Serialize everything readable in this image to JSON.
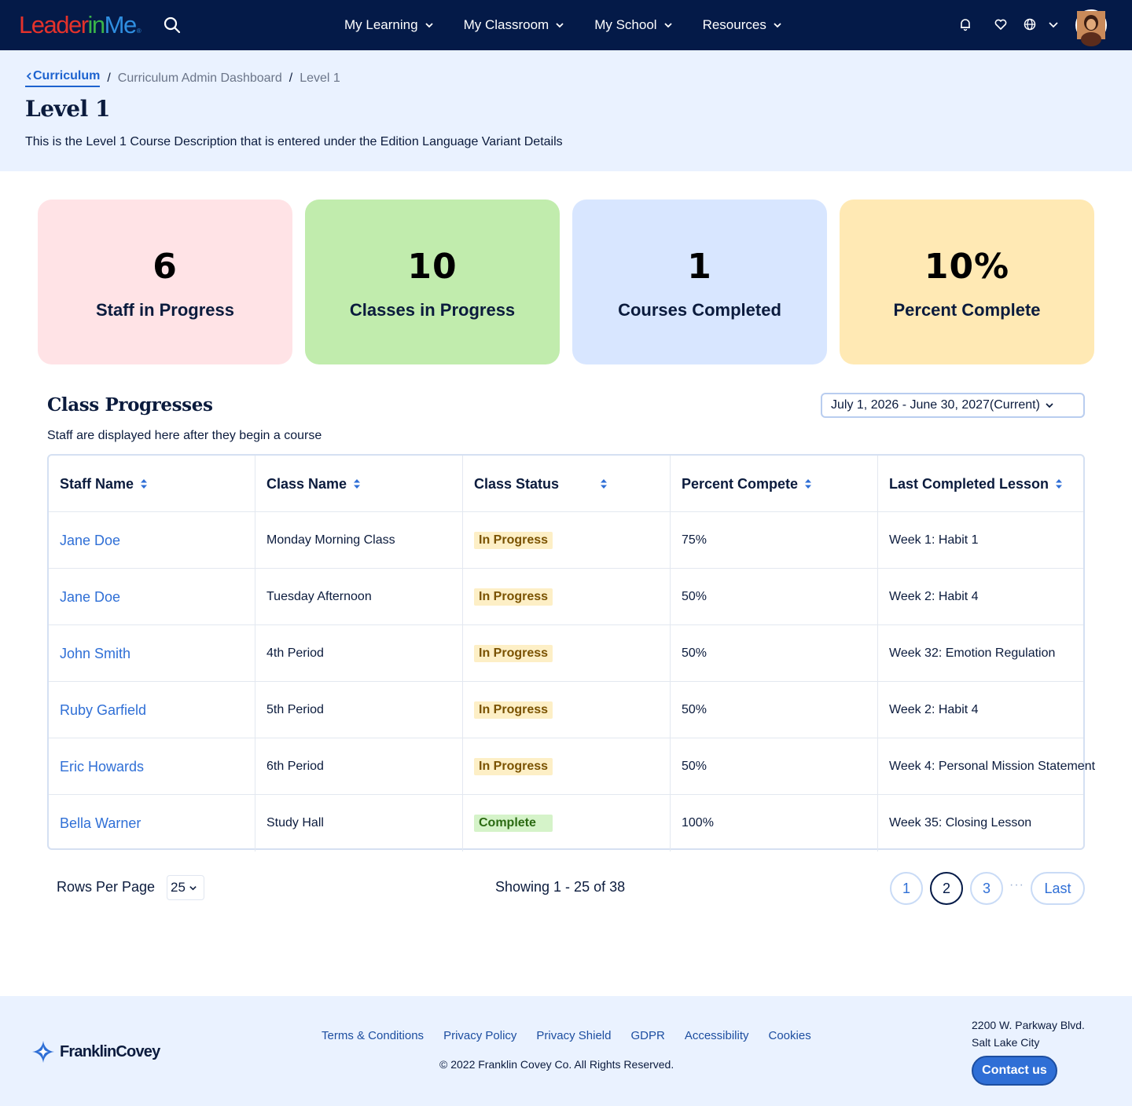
{
  "header": {
    "logo": {
      "part1": "Leader",
      "part2": "in",
      "part3": "Me",
      "mark": "®"
    },
    "nav": [
      {
        "label": "My Learning"
      },
      {
        "label": "My Classroom"
      },
      {
        "label": "My School"
      },
      {
        "label": "Resources"
      }
    ],
    "icons": [
      "search-icon",
      "bell-icon",
      "heart-icon",
      "globe-icon",
      "chevron-down-icon"
    ]
  },
  "breadcrumb": {
    "back_label": "Curriculum",
    "items": [
      "Curriculum Admin Dashboard",
      "Level 1"
    ]
  },
  "page": {
    "title": "Level 1",
    "description": "This is the Level 1 Course Description that is entered under the Edition Language Variant Details"
  },
  "stats": [
    {
      "value": "6",
      "label": "Staff in Progress",
      "color": "#ffe3e6"
    },
    {
      "value": "10",
      "label": "Classes in Progress",
      "color": "#c1ecad"
    },
    {
      "value": "1",
      "label": "Courses Completed",
      "color": "#d8e6ff"
    },
    {
      "value": "10%",
      "label": "Percent Complete",
      "color": "#ffe9b4"
    }
  ],
  "section": {
    "title": "Class Progresses",
    "subtitle": "Staff are displayed here after they begin a course",
    "date_range": "July 1, 2026 - June 30, 2027(Current)"
  },
  "table": {
    "columns": [
      "Staff Name",
      "Class Name",
      "Class Status",
      "Percent Compete",
      "Last Completed Lesson"
    ],
    "rows": [
      {
        "staff": "Jane Doe",
        "class": "Monday Morning Class",
        "status": "In Progress",
        "percent": "75%",
        "lesson": "Week 1: Habit 1"
      },
      {
        "staff": "Jane Doe",
        "class": "Tuesday Afternoon",
        "status": "In Progress",
        "percent": "50%",
        "lesson": "Week 2: Habit 4"
      },
      {
        "staff": "John Smith",
        "class": "4th Period",
        "status": "In Progress",
        "percent": "50%",
        "lesson": "Week 32: Emotion Regulation"
      },
      {
        "staff": "Ruby Garfield",
        "class": "5th Period",
        "status": "In Progress",
        "percent": "50%",
        "lesson": "Week 2: Habit 4"
      },
      {
        "staff": "Eric Howards",
        "class": "6th Period",
        "status": "In Progress",
        "percent": "50%",
        "lesson": "Week 4: Personal Mission Statement"
      },
      {
        "staff": "Bella Warner",
        "class": "Study Hall",
        "status": "Complete",
        "percent": "100%",
        "lesson": "Week 35: Closing Lesson"
      }
    ]
  },
  "pagination": {
    "rows_label": "Rows Per Page",
    "rows_value": "25",
    "showing": "Showing 1 - 25 of 38",
    "pages": [
      "1",
      "2",
      "3"
    ],
    "active_page": "2",
    "ellipsis": "···",
    "last_label": "Last"
  },
  "footer": {
    "brand": "FranklinCovey",
    "links": [
      "Terms & Conditions",
      "Privacy Policy",
      "Privacy Shield",
      "GDPR",
      "Accessibility",
      "Cookies"
    ],
    "copyright": "© 2022 Franklin Covey Co. All Rights Reserved.",
    "address_line1": "2200 W. Parkway Blvd.",
    "address_line2": "Salt Lake City",
    "contact_label": "Contact us"
  }
}
